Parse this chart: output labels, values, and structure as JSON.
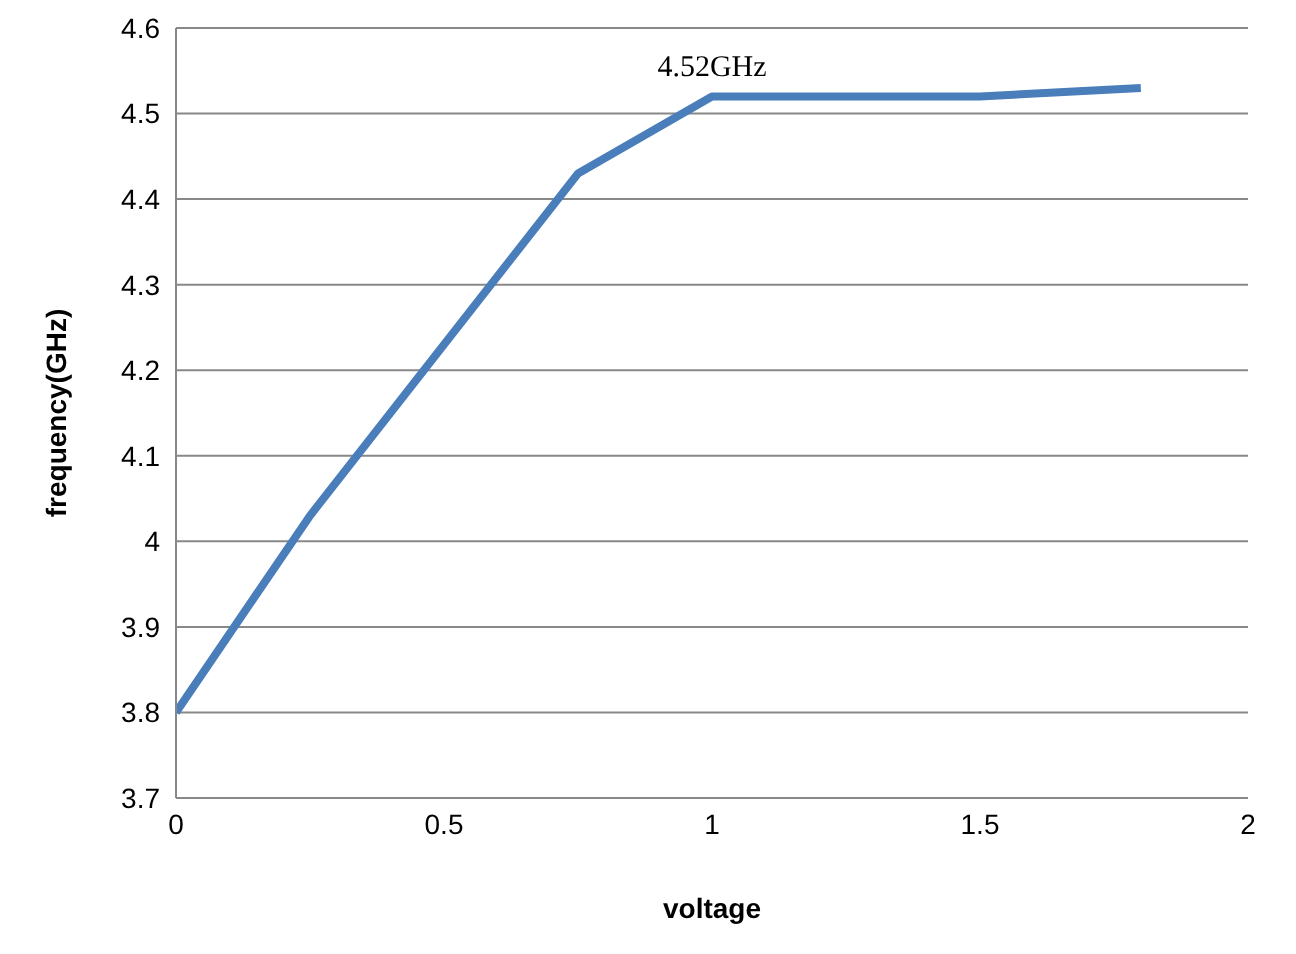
{
  "chart_data": {
    "type": "line",
    "xlabel": "voltage",
    "ylabel": "frequency(GHz)",
    "x": [
      0,
      0.25,
      0.75,
      1,
      1.5,
      1.8
    ],
    "series": [
      {
        "color": "#4a7ebb",
        "values": [
          3.8,
          4.03,
          4.43,
          4.52,
          4.52,
          4.53
        ]
      }
    ],
    "xlim": [
      0,
      2
    ],
    "xticks": [
      0,
      0.5,
      1,
      1.5,
      2
    ],
    "ylim": [
      3.7,
      4.6
    ],
    "yticks": [
      3.7,
      3.8,
      3.9,
      4,
      4.1,
      4.2,
      4.3,
      4.4,
      4.5,
      4.6
    ],
    "grid": "y",
    "legend": false,
    "marker": "none",
    "line_style": "solid",
    "annotations": [
      {
        "text": "4.52GHz",
        "x": 1,
        "y": 4.52
      }
    ]
  }
}
